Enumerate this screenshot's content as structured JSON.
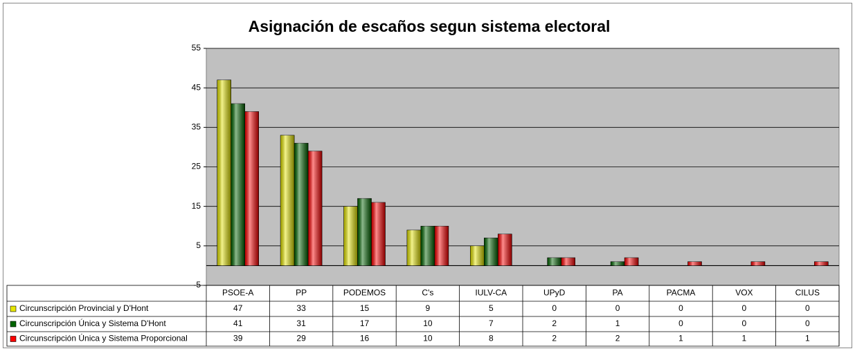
{
  "chart_data": {
    "type": "bar",
    "title": "Asignación de escaños segun sistema electoral",
    "categories": [
      "PSOE-A",
      "PP",
      "PODEMOS",
      "C's",
      "IULV-CA",
      "UPyD",
      "PA",
      "PACMA",
      "VOX",
      "CILUS"
    ],
    "series": [
      {
        "name": "Circunscripción Provincial y D'Hont",
        "color": "#e6e600",
        "values": [
          47,
          33,
          15,
          9,
          5,
          0,
          0,
          0,
          0,
          0
        ]
      },
      {
        "name": "Circunscripción Única y Sistema D'Hont",
        "color": "#006400",
        "values": [
          41,
          31,
          17,
          10,
          7,
          2,
          1,
          0,
          0,
          0
        ]
      },
      {
        "name": "Circunscripción Única y Sistema Proporcional",
        "color": "#ff0000",
        "values": [
          39,
          29,
          16,
          10,
          8,
          2,
          2,
          1,
          1,
          1
        ]
      }
    ],
    "ylim": [
      -5,
      55
    ],
    "yticks": [
      -5,
      5,
      15,
      25,
      35,
      45,
      55
    ],
    "grid": true,
    "plot_background": "#c0c0c0"
  }
}
